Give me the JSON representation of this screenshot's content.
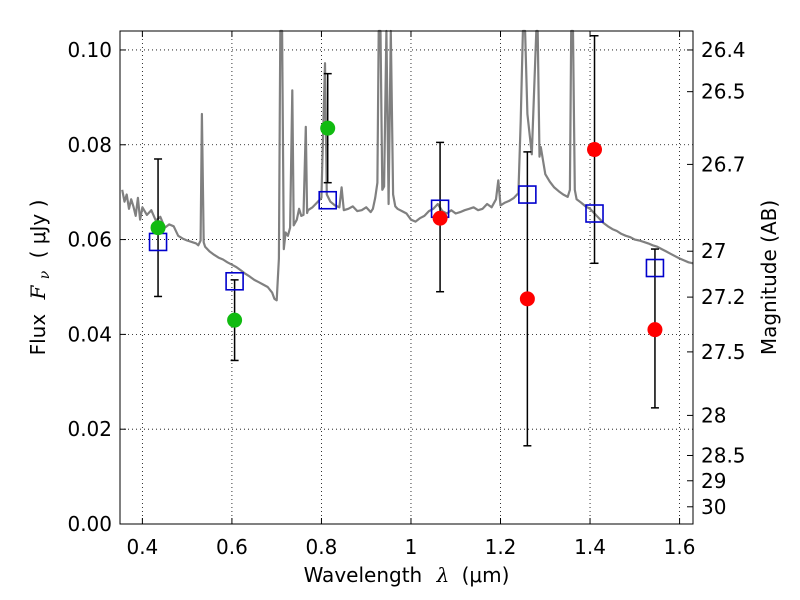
{
  "chart_data": {
    "type": "scatter",
    "xlabel": {
      "prefix": "Wavelength",
      "math": "λ",
      "unit": "(μm)"
    },
    "ylabel": {
      "prefix": "Flux",
      "math": "F",
      "sub": "ν",
      "unit": "( μJy )"
    },
    "y2label": "Magnitude (AB)",
    "xlim": [
      0.35,
      1.63
    ],
    "ylim": [
      0.0,
      0.104
    ],
    "x_ticks": [
      0.4,
      0.6,
      0.8,
      1.0,
      1.2,
      1.4,
      1.6
    ],
    "x_tick_labels": [
      "0.4",
      "0.6",
      "0.8",
      "1",
      "1.2",
      "1.4",
      "1.6"
    ],
    "y_ticks": [
      0.0,
      0.02,
      0.04,
      0.06,
      0.08,
      0.1
    ],
    "y_tick_labels": [
      "0.00",
      "0.02",
      "0.04",
      "0.06",
      "0.08",
      "0.10"
    ],
    "y2_ticks": [
      {
        "label": "26.4",
        "value": 26.4
      },
      {
        "label": "26.5",
        "value": 26.5
      },
      {
        "label": "26.7",
        "value": 26.7
      },
      {
        "label": "27",
        "value": 27.0
      },
      {
        "label": "27.2",
        "value": 27.2
      },
      {
        "label": "27.5",
        "value": 27.5
      },
      {
        "label": "28",
        "value": 28.0
      },
      {
        "label": "28.5",
        "value": 28.5
      },
      {
        "label": "29",
        "value": 29.0
      },
      {
        "label": "30",
        "value": 30.0
      }
    ],
    "grid": true,
    "colors": {
      "template": "#808080",
      "green": "#11bb11",
      "red": "#ff0000",
      "model_square": "#0000cc",
      "errorbar": "#000000"
    },
    "observed": [
      {
        "x": 0.435,
        "y": 0.0625,
        "yerr_low": 0.048,
        "yerr_high": 0.077,
        "color": "green"
      },
      {
        "x": 0.606,
        "y": 0.043,
        "yerr_low": 0.0345,
        "yerr_high": 0.0515,
        "color": "green"
      },
      {
        "x": 0.814,
        "y": 0.0835,
        "yerr_low": 0.072,
        "yerr_high": 0.095,
        "color": "green"
      },
      {
        "x": 1.065,
        "y": 0.0645,
        "yerr_low": 0.049,
        "yerr_high": 0.0805,
        "color": "red"
      },
      {
        "x": 1.26,
        "y": 0.0475,
        "yerr_low": 0.0165,
        "yerr_high": 0.0785,
        "color": "red"
      },
      {
        "x": 1.41,
        "y": 0.079,
        "yerr_low": 0.055,
        "yerr_high": 0.103,
        "color": "red"
      },
      {
        "x": 1.545,
        "y": 0.041,
        "yerr_low": 0.0245,
        "yerr_high": 0.058,
        "color": "red"
      }
    ],
    "model_points": [
      {
        "x": 0.435,
        "y": 0.0595
      },
      {
        "x": 0.606,
        "y": 0.0512
      },
      {
        "x": 0.814,
        "y": 0.0683
      },
      {
        "x": 1.065,
        "y": 0.0665
      },
      {
        "x": 1.26,
        "y": 0.0695
      },
      {
        "x": 1.41,
        "y": 0.0655
      },
      {
        "x": 1.545,
        "y": 0.054
      }
    ],
    "template_spectrum": [
      [
        0.355,
        0.0705
      ],
      [
        0.36,
        0.068
      ],
      [
        0.365,
        0.0695
      ],
      [
        0.37,
        0.0665
      ],
      [
        0.375,
        0.0685
      ],
      [
        0.38,
        0.067
      ],
      [
        0.385,
        0.065
      ],
      [
        0.39,
        0.0688
      ],
      [
        0.395,
        0.0642
      ],
      [
        0.4,
        0.0668
      ],
      [
        0.41,
        0.0652
      ],
      [
        0.42,
        0.0662
      ],
      [
        0.43,
        0.064
      ],
      [
        0.44,
        0.0648
      ],
      [
        0.45,
        0.0625
      ],
      [
        0.46,
        0.0632
      ],
      [
        0.47,
        0.0628
      ],
      [
        0.48,
        0.0608
      ],
      [
        0.49,
        0.0602
      ],
      [
        0.5,
        0.0598
      ],
      [
        0.51,
        0.0595
      ],
      [
        0.52,
        0.0592
      ],
      [
        0.525,
        0.0588
      ],
      [
        0.53,
        0.0598
      ],
      [
        0.533,
        0.0865
      ],
      [
        0.537,
        0.0594
      ],
      [
        0.54,
        0.0585
      ],
      [
        0.55,
        0.0575
      ],
      [
        0.56,
        0.0568
      ],
      [
        0.57,
        0.0562
      ],
      [
        0.58,
        0.0558
      ],
      [
        0.59,
        0.0552
      ],
      [
        0.6,
        0.0547
      ],
      [
        0.61,
        0.0542
      ],
      [
        0.62,
        0.0535
      ],
      [
        0.63,
        0.0528
      ],
      [
        0.64,
        0.0522
      ],
      [
        0.65,
        0.0515
      ],
      [
        0.66,
        0.051
      ],
      [
        0.67,
        0.0505
      ],
      [
        0.68,
        0.05
      ],
      [
        0.69,
        0.0488
      ],
      [
        0.695,
        0.0475
      ],
      [
        0.7,
        0.0472
      ],
      [
        0.705,
        0.056
      ],
      [
        0.708,
        0.104
      ],
      [
        0.712,
        0.104
      ],
      [
        0.716,
        0.058
      ],
      [
        0.72,
        0.0615
      ],
      [
        0.725,
        0.0608
      ],
      [
        0.73,
        0.0625
      ],
      [
        0.735,
        0.0915
      ],
      [
        0.738,
        0.063
      ],
      [
        0.745,
        0.0642
      ],
      [
        0.75,
        0.0665
      ],
      [
        0.755,
        0.065
      ],
      [
        0.76,
        0.0652
      ],
      [
        0.765,
        0.0838
      ],
      [
        0.768,
        0.0656
      ],
      [
        0.77,
        0.0662
      ],
      [
        0.78,
        0.0668
      ],
      [
        0.79,
        0.0678
      ],
      [
        0.8,
        0.0688
      ],
      [
        0.805,
        0.087
      ],
      [
        0.808,
        0.0972
      ],
      [
        0.812,
        0.0695
      ],
      [
        0.82,
        0.068
      ],
      [
        0.83,
        0.0672
      ],
      [
        0.84,
        0.0668
      ],
      [
        0.845,
        0.071
      ],
      [
        0.85,
        0.0662
      ],
      [
        0.86,
        0.0665
      ],
      [
        0.87,
        0.067
      ],
      [
        0.88,
        0.066
      ],
      [
        0.89,
        0.0662
      ],
      [
        0.9,
        0.0668
      ],
      [
        0.91,
        0.0658
      ],
      [
        0.915,
        0.0665
      ],
      [
        0.92,
        0.0688
      ],
      [
        0.925,
        0.072
      ],
      [
        0.928,
        0.104
      ],
      [
        0.932,
        0.104
      ],
      [
        0.936,
        0.0705
      ],
      [
        0.94,
        0.0712
      ],
      [
        0.945,
        0.104
      ],
      [
        0.95,
        0.0675
      ],
      [
        0.955,
        0.104
      ],
      [
        0.96,
        0.0695
      ],
      [
        0.965,
        0.067
      ],
      [
        0.97,
        0.0665
      ],
      [
        0.98,
        0.066
      ],
      [
        0.99,
        0.0655
      ],
      [
        1.0,
        0.0642
      ],
      [
        1.01,
        0.0638
      ],
      [
        1.02,
        0.0645
      ],
      [
        1.03,
        0.065
      ],
      [
        1.04,
        0.066
      ],
      [
        1.05,
        0.0665
      ],
      [
        1.06,
        0.0675
      ],
      [
        1.07,
        0.066
      ],
      [
        1.08,
        0.0655
      ],
      [
        1.09,
        0.0662
      ],
      [
        1.1,
        0.0655
      ],
      [
        1.11,
        0.0658
      ],
      [
        1.12,
        0.0662
      ],
      [
        1.13,
        0.0665
      ],
      [
        1.14,
        0.0668
      ],
      [
        1.15,
        0.0662
      ],
      [
        1.16,
        0.0665
      ],
      [
        1.17,
        0.0675
      ],
      [
        1.18,
        0.0668
      ],
      [
        1.19,
        0.0685
      ],
      [
        1.195,
        0.0725
      ],
      [
        1.2,
        0.0672
      ],
      [
        1.21,
        0.0678
      ],
      [
        1.22,
        0.0682
      ],
      [
        1.23,
        0.0688
      ],
      [
        1.24,
        0.0698
      ],
      [
        1.245,
        0.085
      ],
      [
        1.25,
        0.104
      ],
      [
        1.255,
        0.104
      ],
      [
        1.26,
        0.0865
      ],
      [
        1.27,
        0.078
      ],
      [
        1.28,
        0.104
      ],
      [
        1.283,
        0.104
      ],
      [
        1.287,
        0.0775
      ],
      [
        1.29,
        0.0795
      ],
      [
        1.3,
        0.0738
      ],
      [
        1.31,
        0.0722
      ],
      [
        1.32,
        0.071
      ],
      [
        1.33,
        0.0702
      ],
      [
        1.34,
        0.0695
      ],
      [
        1.35,
        0.069
      ],
      [
        1.355,
        0.0705
      ],
      [
        1.358,
        0.104
      ],
      [
        1.362,
        0.104
      ],
      [
        1.366,
        0.0705
      ],
      [
        1.37,
        0.0685
      ],
      [
        1.38,
        0.0678
      ],
      [
        1.39,
        0.067
      ],
      [
        1.4,
        0.0665
      ],
      [
        1.41,
        0.0655
      ],
      [
        1.42,
        0.0645
      ],
      [
        1.43,
        0.0635
      ],
      [
        1.44,
        0.0628
      ],
      [
        1.45,
        0.0622
      ],
      [
        1.46,
        0.0618
      ],
      [
        1.47,
        0.0612
      ],
      [
        1.48,
        0.0608
      ],
      [
        1.49,
        0.0605
      ],
      [
        1.5,
        0.06
      ],
      [
        1.51,
        0.0598
      ],
      [
        1.52,
        0.0595
      ],
      [
        1.53,
        0.0592
      ],
      [
        1.54,
        0.0588
      ],
      [
        1.55,
        0.0585
      ],
      [
        1.56,
        0.058
      ],
      [
        1.57,
        0.0575
      ],
      [
        1.58,
        0.057
      ],
      [
        1.59,
        0.0565
      ],
      [
        1.6,
        0.056
      ],
      [
        1.61,
        0.0556
      ],
      [
        1.62,
        0.0552
      ],
      [
        1.63,
        0.055
      ]
    ]
  }
}
